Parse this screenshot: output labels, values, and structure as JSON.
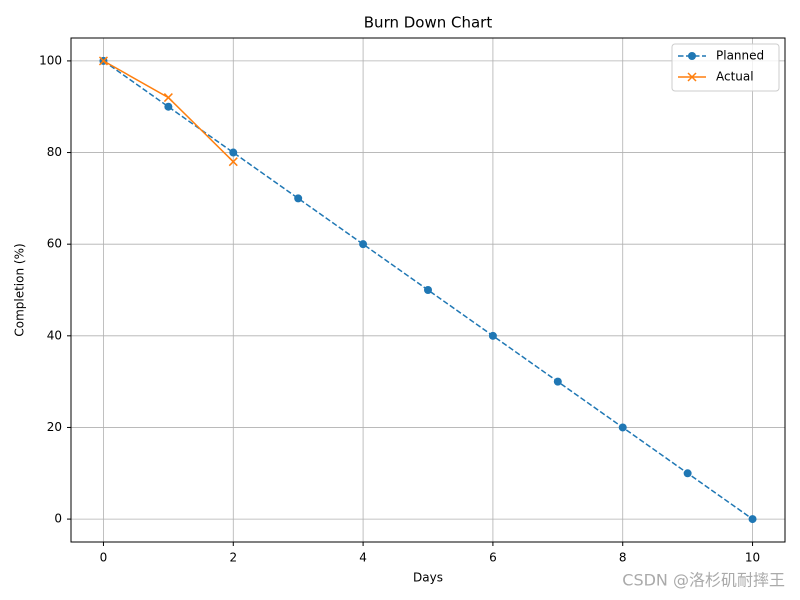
{
  "chart_data": {
    "type": "line",
    "title": "Burn Down Chart",
    "xlabel": "Days",
    "ylabel": "Completion (%)",
    "x": [
      0,
      1,
      2,
      3,
      4,
      5,
      6,
      7,
      8,
      9,
      10
    ],
    "series": [
      {
        "name": "Planned",
        "color": "#1f77b4",
        "linestyle": "dashed",
        "marker": "circle",
        "values": [
          100,
          90,
          80,
          70,
          60,
          50,
          40,
          30,
          20,
          10,
          0
        ]
      },
      {
        "name": "Actual",
        "color": "#ff7f0e",
        "linestyle": "solid",
        "marker": "x",
        "values": [
          100,
          92,
          78,
          null,
          null,
          null,
          null,
          null,
          null,
          null,
          null
        ]
      }
    ],
    "xlim": [
      -0.5,
      10.5
    ],
    "xticks": [
      0,
      2,
      4,
      6,
      8,
      10
    ],
    "ylim": [
      -5,
      105
    ],
    "yticks": [
      0,
      20,
      40,
      60,
      80,
      100
    ],
    "grid": true,
    "legend": "upper right",
    "watermark": "CSDN @洛杉矶耐摔王"
  }
}
